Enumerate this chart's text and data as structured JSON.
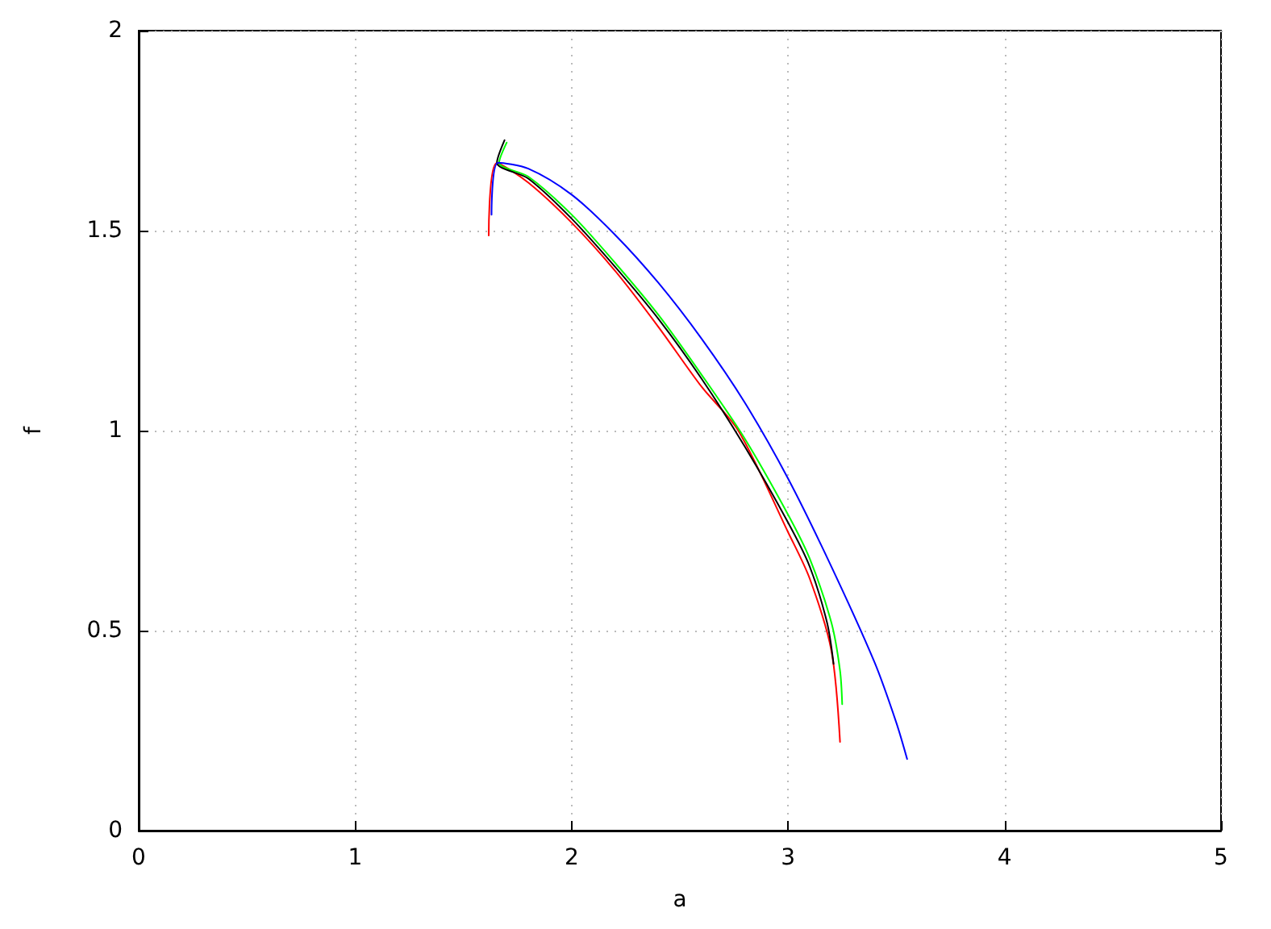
{
  "chart_data": {
    "type": "line",
    "xlabel": "a",
    "ylabel": "f",
    "xlim": [
      0,
      5
    ],
    "xticks": [
      0,
      1,
      2,
      3,
      4,
      5
    ],
    "ylim": [
      0,
      2
    ],
    "yticks": [
      0,
      0.5,
      1,
      1.5,
      2
    ],
    "grid": true,
    "marker": "none",
    "line_style": "solid",
    "series": [
      {
        "color": "#ff0000",
        "x": [
          1.617,
          1.654,
          1.8,
          2.0,
          2.2,
          2.4,
          2.6,
          2.77,
          3.0,
          3.1,
          3.2,
          3.24
        ],
        "values": [
          1.488,
          1.669,
          1.62,
          1.52,
          1.4,
          1.26,
          1.11,
          1.0,
          0.746,
          0.63,
          0.45,
          0.222
        ]
      },
      {
        "color": "#00ff00",
        "x": [
          1.7,
          1.665,
          1.8,
          2.0,
          2.2,
          2.4,
          2.6,
          2.8,
          3.0,
          3.1,
          3.2,
          3.24,
          3.25
        ],
        "values": [
          1.72,
          1.67,
          1.635,
          1.54,
          1.42,
          1.29,
          1.14,
          0.98,
          0.79,
          0.68,
          0.52,
          0.4,
          0.316
        ]
      },
      {
        "color": "#000000",
        "x": [
          1.69,
          1.655,
          1.8,
          2.0,
          2.2,
          2.4,
          2.6,
          2.8,
          3.0,
          3.1,
          3.18,
          3.21
        ],
        "values": [
          1.726,
          1.67,
          1.63,
          1.53,
          1.41,
          1.28,
          1.13,
          0.96,
          0.77,
          0.66,
          0.52,
          0.417
        ]
      },
      {
        "color": "#0000ff",
        "x": [
          1.63,
          1.66,
          1.8,
          2.0,
          2.2,
          2.4,
          2.6,
          2.8,
          3.0,
          3.2,
          3.4,
          3.5,
          3.55
        ],
        "values": [
          1.54,
          1.67,
          1.655,
          1.59,
          1.49,
          1.37,
          1.23,
          1.07,
          0.88,
          0.66,
          0.42,
          0.27,
          0.179
        ]
      }
    ]
  }
}
